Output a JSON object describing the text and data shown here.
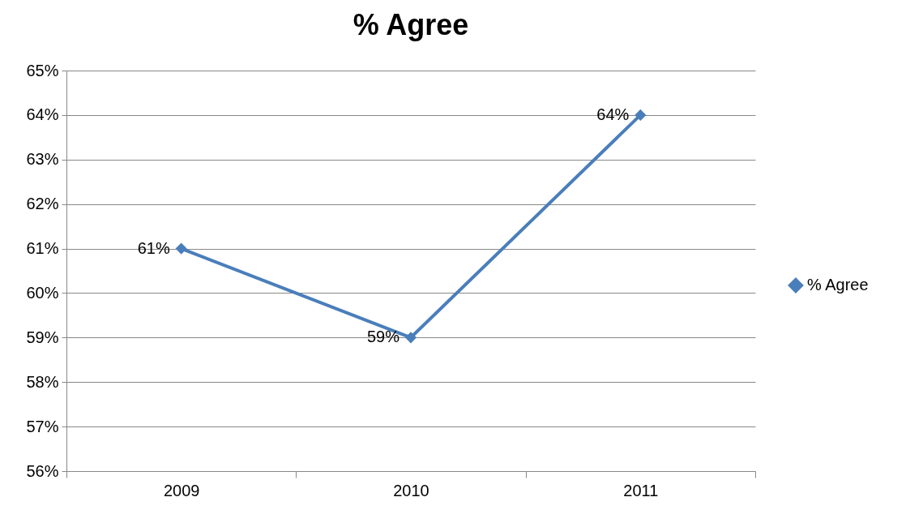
{
  "chart_data": {
    "type": "line",
    "title": "% Agree",
    "categories": [
      "2009",
      "2010",
      "2011"
    ],
    "series": [
      {
        "name": "% Agree",
        "color": "#4a7ebb",
        "values": [
          61,
          59,
          64
        ],
        "value_labels": [
          "61%",
          "59%",
          "64%"
        ]
      }
    ],
    "ylim": [
      56,
      65
    ],
    "yticks": [
      {
        "value": 56,
        "label": "56%"
      },
      {
        "value": 57,
        "label": "57%"
      },
      {
        "value": 58,
        "label": "58%"
      },
      {
        "value": 59,
        "label": "59%"
      },
      {
        "value": 60,
        "label": "60%"
      },
      {
        "value": 61,
        "label": "61%"
      },
      {
        "value": 62,
        "label": "62%"
      },
      {
        "value": 63,
        "label": "63%"
      },
      {
        "value": 64,
        "label": "64%"
      },
      {
        "value": 65,
        "label": "65%"
      }
    ],
    "grid": "y",
    "legend": "right",
    "marker": "diamond",
    "line_style": "solid"
  }
}
